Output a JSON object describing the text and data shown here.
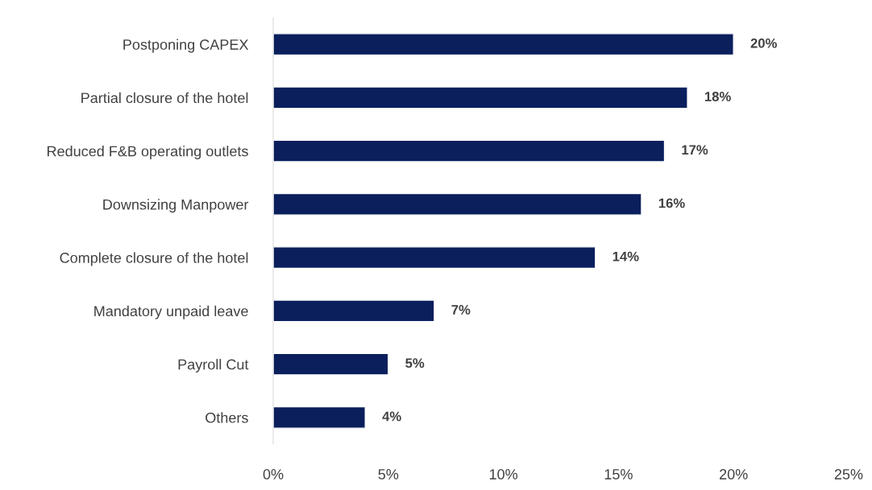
{
  "chart_data": {
    "type": "bar",
    "orientation": "horizontal",
    "categories": [
      "Postponing CAPEX",
      "Partial closure of the hotel",
      "Reduced F&B operating outlets",
      "Downsizing Manpower",
      "Complete closure of the hotel",
      "Mandatory unpaid leave",
      "Payroll Cut",
      "Others"
    ],
    "values": [
      20,
      18,
      17,
      16,
      14,
      7,
      5,
      4
    ],
    "value_labels": [
      "20%",
      "18%",
      "17%",
      "16%",
      "14%",
      "7%",
      "5%",
      "4%"
    ],
    "color": "#0a1f5c",
    "xlim": [
      0,
      25
    ],
    "xticks": [
      {
        "value": 0,
        "label": "0%"
      },
      {
        "value": 5,
        "label": "5%"
      },
      {
        "value": 10,
        "label": "10%"
      },
      {
        "value": 15,
        "label": "15%"
      },
      {
        "value": 20,
        "label": "20%"
      },
      {
        "value": 25,
        "label": "25%"
      }
    ],
    "grid": false
  }
}
